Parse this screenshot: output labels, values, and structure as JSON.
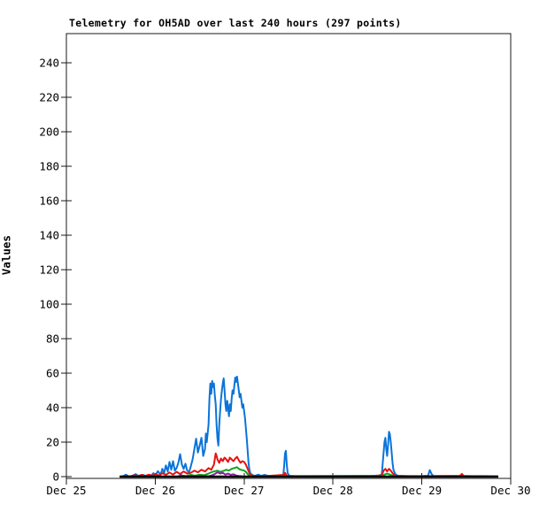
{
  "chart_data": {
    "type": "line",
    "title": "Telemetry for OH5AD over last 240 hours (297 points)",
    "xlabel": "",
    "ylabel": "Values",
    "grid": false,
    "legend_position": "none",
    "x_unit": "days since Dec 25",
    "xlim": [
      0,
      5
    ],
    "ylim": [
      0,
      257
    ],
    "y_ticks": [
      0,
      20,
      40,
      60,
      80,
      100,
      120,
      140,
      160,
      180,
      200,
      220,
      240
    ],
    "x_ticks": [
      {
        "pos": 0,
        "label": "Dec 25"
      },
      {
        "pos": 1,
        "label": "Dec 26"
      },
      {
        "pos": 2,
        "label": "Dec 27"
      },
      {
        "pos": 3,
        "label": "Dec 28"
      },
      {
        "pos": 4,
        "label": "Dec 29"
      },
      {
        "pos": 5,
        "label": "Dec 30"
      }
    ],
    "axis_color": "#1a1a1a",
    "series": [
      {
        "name": "series-1-blue",
        "color": "#0b74d9",
        "width": 2,
        "points": [
          [
            0.6,
            0
          ],
          [
            0.64,
            0.3
          ],
          [
            0.67,
            1.2
          ],
          [
            0.7,
            0.2
          ],
          [
            0.74,
            0.3
          ],
          [
            0.78,
            1.5
          ],
          [
            0.81,
            0.3
          ],
          [
            0.86,
            1.0
          ],
          [
            0.9,
            0.3
          ],
          [
            0.95,
            0.4
          ],
          [
            0.98,
            2.0
          ],
          [
            1.0,
            0.6
          ],
          [
            1.03,
            3.2
          ],
          [
            1.06,
            1.0
          ],
          [
            1.08,
            4.5
          ],
          [
            1.1,
            2.0
          ],
          [
            1.12,
            6.5
          ],
          [
            1.14,
            3.0
          ],
          [
            1.16,
            8.5
          ],
          [
            1.18,
            4.0
          ],
          [
            1.2,
            9.0
          ],
          [
            1.22,
            3.5
          ],
          [
            1.24,
            5.0
          ],
          [
            1.26,
            8.0
          ],
          [
            1.28,
            13.0
          ],
          [
            1.3,
            7.0
          ],
          [
            1.32,
            4.5
          ],
          [
            1.34,
            7.5
          ],
          [
            1.36,
            3.5
          ],
          [
            1.38,
            2.5
          ],
          [
            1.4,
            6.0
          ],
          [
            1.42,
            10.0
          ],
          [
            1.44,
            16.0
          ],
          [
            1.46,
            22.0
          ],
          [
            1.48,
            14.0
          ],
          [
            1.5,
            18.0
          ],
          [
            1.52,
            22.5
          ],
          [
            1.54,
            12.0
          ],
          [
            1.56,
            16.0
          ],
          [
            1.57,
            25.0
          ],
          [
            1.58,
            20.0
          ],
          [
            1.6,
            30.0
          ],
          [
            1.61,
            45.0
          ],
          [
            1.62,
            54.0
          ],
          [
            1.63,
            48.0
          ],
          [
            1.64,
            55.5
          ],
          [
            1.65,
            52.0
          ],
          [
            1.66,
            54.0
          ],
          [
            1.67,
            47.0
          ],
          [
            1.68,
            42.0
          ],
          [
            1.69,
            30.0
          ],
          [
            1.7,
            22.0
          ],
          [
            1.71,
            18.0
          ],
          [
            1.72,
            30.0
          ],
          [
            1.73,
            38.0
          ],
          [
            1.74,
            45.0
          ],
          [
            1.75,
            50.0
          ],
          [
            1.76,
            54.0
          ],
          [
            1.77,
            57.0
          ],
          [
            1.78,
            50.0
          ],
          [
            1.79,
            42.0
          ],
          [
            1.8,
            38.0
          ],
          [
            1.81,
            44.0
          ],
          [
            1.82,
            40.0
          ],
          [
            1.83,
            35.0
          ],
          [
            1.84,
            42.0
          ],
          [
            1.85,
            38.0
          ],
          [
            1.86,
            45.0
          ],
          [
            1.87,
            50.0
          ],
          [
            1.88,
            48.0
          ],
          [
            1.89,
            53.0
          ],
          [
            1.9,
            57.5
          ],
          [
            1.91,
            55.0
          ],
          [
            1.92,
            58.0
          ],
          [
            1.93,
            54.0
          ],
          [
            1.94,
            50.0
          ],
          [
            1.95,
            46.0
          ],
          [
            1.96,
            48.0
          ],
          [
            1.97,
            44.0
          ],
          [
            1.98,
            40.0
          ],
          [
            1.99,
            42.0
          ],
          [
            2.0,
            38.0
          ],
          [
            2.01,
            34.0
          ],
          [
            2.02,
            28.0
          ],
          [
            2.03,
            22.0
          ],
          [
            2.04,
            15.0
          ],
          [
            2.05,
            8.0
          ],
          [
            2.06,
            4.0
          ],
          [
            2.07,
            2.0
          ],
          [
            2.09,
            1.0
          ],
          [
            2.12,
            0.4
          ],
          [
            2.16,
            1.2
          ],
          [
            2.19,
            0.4
          ],
          [
            2.23,
            1.0
          ],
          [
            2.27,
            0.4
          ],
          [
            2.32,
            0.3
          ],
          [
            2.4,
            0.3
          ],
          [
            2.44,
            0.6
          ],
          [
            2.45,
            6.0
          ],
          [
            2.46,
            13.5
          ],
          [
            2.47,
            15.0
          ],
          [
            2.48,
            7.0
          ],
          [
            2.49,
            2.0
          ],
          [
            2.51,
            0.4
          ],
          [
            2.6,
            0.3
          ],
          [
            2.8,
            0.3
          ],
          [
            3.0,
            0.3
          ],
          [
            3.2,
            0.3
          ],
          [
            3.4,
            0.3
          ],
          [
            3.52,
            0.4
          ],
          [
            3.55,
            1.5
          ],
          [
            3.57,
            14.0
          ],
          [
            3.58,
            20.0
          ],
          [
            3.59,
            22.5
          ],
          [
            3.6,
            16.0
          ],
          [
            3.61,
            12.0
          ],
          [
            3.62,
            18.0
          ],
          [
            3.63,
            26.0
          ],
          [
            3.64,
            24.5
          ],
          [
            3.65,
            20.0
          ],
          [
            3.66,
            14.0
          ],
          [
            3.67,
            8.0
          ],
          [
            3.68,
            4.0
          ],
          [
            3.7,
            1.5
          ],
          [
            3.73,
            0.4
          ],
          [
            3.85,
            0.3
          ],
          [
            4.0,
            0.3
          ],
          [
            4.07,
            0.5
          ],
          [
            4.09,
            3.8
          ],
          [
            4.11,
            1.5
          ],
          [
            4.13,
            0.4
          ],
          [
            4.3,
            0.3
          ],
          [
            4.5,
            0.3
          ],
          [
            4.7,
            0.3
          ],
          [
            4.86,
            0.2
          ]
        ]
      },
      {
        "name": "series-2-red",
        "color": "#e51212",
        "width": 2,
        "points": [
          [
            0.72,
            0.2
          ],
          [
            0.76,
            0.8
          ],
          [
            0.8,
            0.3
          ],
          [
            0.85,
            1.0
          ],
          [
            0.88,
            0.3
          ],
          [
            0.93,
            1.2
          ],
          [
            0.96,
            0.4
          ],
          [
            1.0,
            1.5
          ],
          [
            1.04,
            0.6
          ],
          [
            1.08,
            2.0
          ],
          [
            1.12,
            1.0
          ],
          [
            1.16,
            2.4
          ],
          [
            1.2,
            1.2
          ],
          [
            1.24,
            2.8
          ],
          [
            1.28,
            1.5
          ],
          [
            1.32,
            3.0
          ],
          [
            1.36,
            1.8
          ],
          [
            1.4,
            2.2
          ],
          [
            1.44,
            3.5
          ],
          [
            1.48,
            2.5
          ],
          [
            1.52,
            4.0
          ],
          [
            1.56,
            3.0
          ],
          [
            1.6,
            5.0
          ],
          [
            1.63,
            4.0
          ],
          [
            1.66,
            7.0
          ],
          [
            1.68,
            13.5
          ],
          [
            1.69,
            12.0
          ],
          [
            1.7,
            10.0
          ],
          [
            1.72,
            8.0
          ],
          [
            1.74,
            10.5
          ],
          [
            1.76,
            9.0
          ],
          [
            1.78,
            11.0
          ],
          [
            1.8,
            10.0
          ],
          [
            1.82,
            8.5
          ],
          [
            1.84,
            11.0
          ],
          [
            1.86,
            10.0
          ],
          [
            1.88,
            9.0
          ],
          [
            1.9,
            10.5
          ],
          [
            1.92,
            11.5
          ],
          [
            1.94,
            9.5
          ],
          [
            1.96,
            8.0
          ],
          [
            1.98,
            9.0
          ],
          [
            2.0,
            8.5
          ],
          [
            2.02,
            7.0
          ],
          [
            2.04,
            4.5
          ],
          [
            2.06,
            2.0
          ],
          [
            2.08,
            0.8
          ],
          [
            2.12,
            0.3
          ],
          [
            2.2,
            0.2
          ],
          [
            2.45,
            1.0
          ],
          [
            2.46,
            2.2
          ],
          [
            2.48,
            0.5
          ],
          [
            2.6,
            0.2
          ],
          [
            3.0,
            0.2
          ],
          [
            3.4,
            0.2
          ],
          [
            3.55,
            0.8
          ],
          [
            3.57,
            3.5
          ],
          [
            3.59,
            4.5
          ],
          [
            3.61,
            3.0
          ],
          [
            3.63,
            4.5
          ],
          [
            3.65,
            3.5
          ],
          [
            3.67,
            2.0
          ],
          [
            3.7,
            0.5
          ],
          [
            3.9,
            0.2
          ],
          [
            4.1,
            0.3
          ],
          [
            4.43,
            0.4
          ],
          [
            4.45,
            1.6
          ],
          [
            4.47,
            0.4
          ],
          [
            4.6,
            0.2
          ]
        ]
      },
      {
        "name": "series-3-green",
        "color": "#0aa41f",
        "width": 2,
        "points": [
          [
            1.25,
            0.2
          ],
          [
            1.3,
            0.6
          ],
          [
            1.35,
            0.3
          ],
          [
            1.4,
            1.0
          ],
          [
            1.45,
            0.5
          ],
          [
            1.5,
            1.2
          ],
          [
            1.55,
            0.8
          ],
          [
            1.6,
            1.8
          ],
          [
            1.63,
            2.5
          ],
          [
            1.66,
            3.0
          ],
          [
            1.7,
            3.5
          ],
          [
            1.73,
            2.8
          ],
          [
            1.76,
            3.2
          ],
          [
            1.8,
            4.0
          ],
          [
            1.83,
            3.5
          ],
          [
            1.86,
            4.5
          ],
          [
            1.89,
            5.0
          ],
          [
            1.92,
            5.5
          ],
          [
            1.94,
            4.5
          ],
          [
            1.96,
            4.0
          ],
          [
            1.98,
            3.8
          ],
          [
            2.0,
            3.5
          ],
          [
            2.02,
            2.8
          ],
          [
            2.04,
            1.5
          ],
          [
            2.06,
            0.5
          ],
          [
            2.1,
            0.2
          ],
          [
            3.56,
            0.5
          ],
          [
            3.58,
            1.2
          ],
          [
            3.61,
            1.8
          ],
          [
            3.64,
            1.2
          ],
          [
            3.67,
            0.6
          ],
          [
            3.7,
            0.2
          ]
        ]
      },
      {
        "name": "series-4-purple",
        "color": "#8a1f9e",
        "width": 2,
        "points": [
          [
            1.27,
            0.2
          ],
          [
            1.29,
            1.0
          ],
          [
            1.31,
            0.2
          ],
          [
            1.6,
            0.2
          ],
          [
            1.64,
            0.8
          ],
          [
            1.67,
            1.5
          ],
          [
            1.7,
            2.5
          ],
          [
            1.73,
            1.8
          ],
          [
            1.76,
            2.2
          ],
          [
            1.79,
            1.2
          ],
          [
            1.82,
            1.8
          ],
          [
            1.85,
            1.0
          ],
          [
            1.88,
            1.4
          ],
          [
            1.91,
            0.6
          ],
          [
            1.94,
            0.4
          ],
          [
            1.98,
            0.2
          ]
        ]
      },
      {
        "name": "series-5-black",
        "color": "#000000",
        "width": 2.5,
        "points": [
          [
            0.6,
            0
          ],
          [
            4.86,
            0
          ]
        ]
      }
    ]
  }
}
